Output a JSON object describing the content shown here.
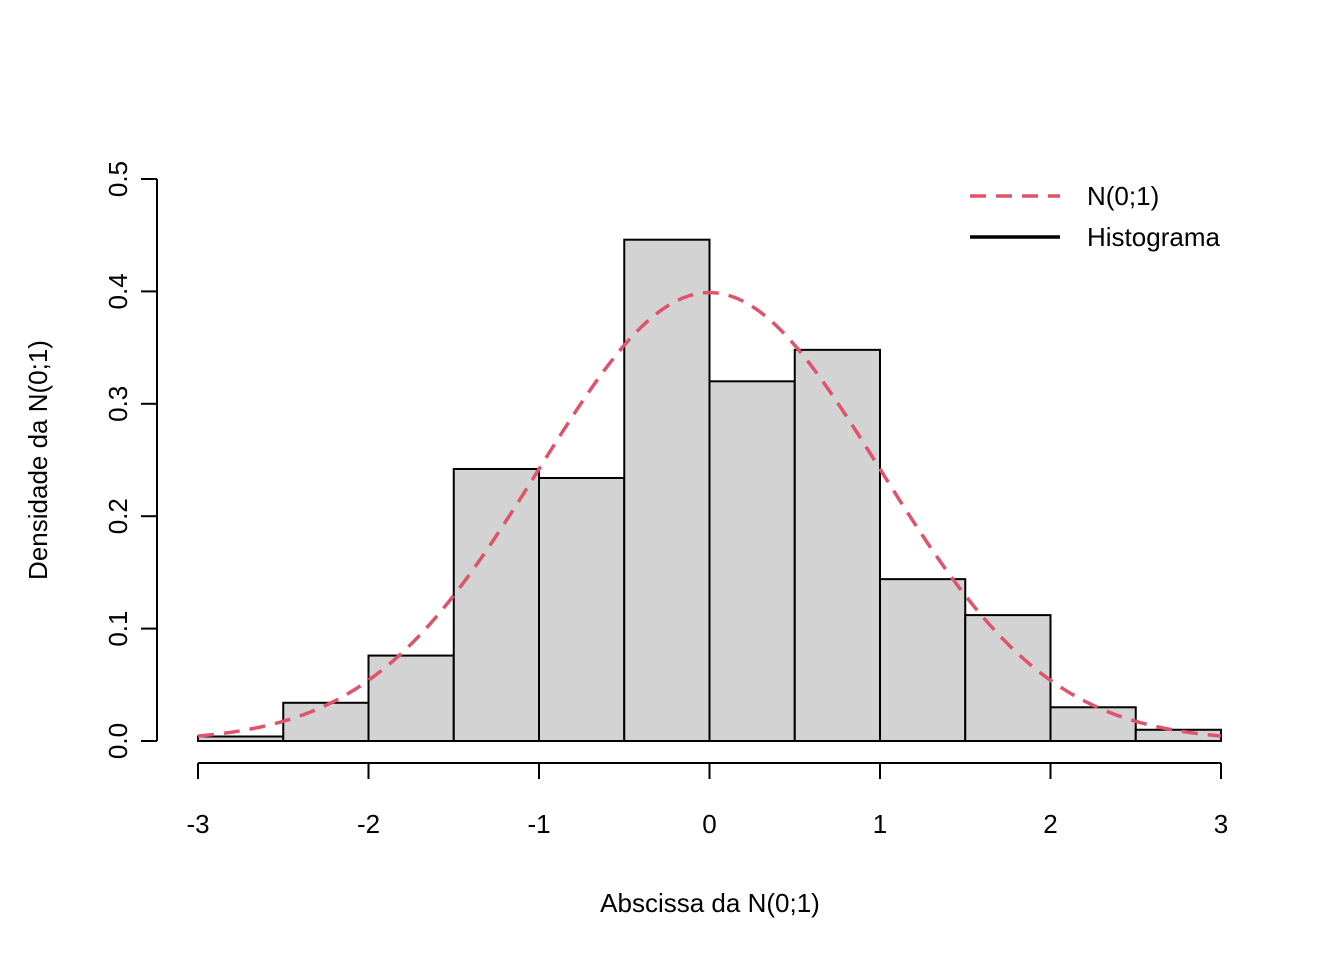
{
  "chart_data": {
    "type": "bar",
    "title": "",
    "xlabel": "Abscissa da N(0;1)",
    "ylabel": "Densidade da N(0;1)",
    "xlim": [
      -3,
      3
    ],
    "ylim": [
      0,
      0.5
    ],
    "x_ticks": [
      "-3",
      "-2",
      "-1",
      "0",
      "1",
      "2",
      "3"
    ],
    "y_ticks": [
      "0.0",
      "0.1",
      "0.2",
      "0.3",
      "0.4",
      "0.5"
    ],
    "grid": false,
    "legend_position": "top-right",
    "legend": [
      {
        "label": "N(0;1)",
        "style": "dashed",
        "color": "#DF536B"
      },
      {
        "label": "Histograma",
        "style": "solid",
        "color": "#000000"
      }
    ],
    "histogram": {
      "bin_edges": [
        -3,
        -2.5,
        -2,
        -1.5,
        -1,
        -0.5,
        0,
        0.5,
        1,
        1.5,
        2,
        2.5,
        3
      ],
      "density": [
        0.004,
        0.034,
        0.076,
        0.242,
        0.234,
        0.446,
        0.32,
        0.348,
        0.144,
        0.112,
        0.03,
        0.01
      ],
      "fill": "#D3D3D3",
      "stroke": "#000000"
    },
    "curve": {
      "name": "N(0;1)",
      "distribution": "normal",
      "mean": 0,
      "sd": 1,
      "color": "#DF536B",
      "style": "dashed"
    }
  }
}
